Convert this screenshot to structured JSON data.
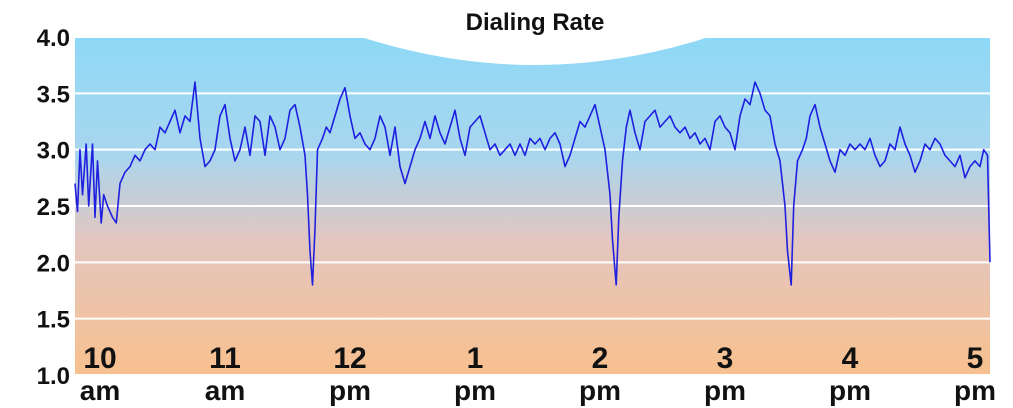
{
  "chart_data": {
    "type": "line",
    "title": "Dialing Rate",
    "x": [
      9.8,
      9.82,
      9.84,
      9.86,
      9.89,
      9.91,
      9.94,
      9.96,
      9.98,
      10.01,
      10.03,
      10.06,
      10.1,
      10.13,
      10.16,
      10.2,
      10.24,
      10.28,
      10.32,
      10.36,
      10.4,
      10.44,
      10.48,
      10.52,
      10.56,
      10.6,
      10.64,
      10.68,
      10.72,
      10.76,
      10.8,
      10.84,
      10.88,
      10.92,
      10.96,
      11.0,
      11.04,
      11.08,
      11.12,
      11.16,
      11.2,
      11.24,
      11.28,
      11.32,
      11.36,
      11.4,
      11.44,
      11.48,
      11.52,
      11.56,
      11.6,
      11.64,
      11.66,
      11.68,
      11.7,
      11.72,
      11.74,
      11.78,
      11.81,
      11.84,
      11.88,
      11.92,
      11.96,
      12.0,
      12.04,
      12.08,
      12.12,
      12.16,
      12.2,
      12.24,
      12.28,
      12.32,
      12.36,
      12.4,
      12.44,
      12.48,
      12.52,
      12.56,
      12.6,
      12.64,
      12.68,
      12.72,
      12.76,
      12.8,
      12.84,
      12.88,
      12.92,
      12.96,
      13.0,
      13.04,
      13.08,
      13.12,
      13.16,
      13.2,
      13.24,
      13.28,
      13.32,
      13.36,
      13.4,
      13.44,
      13.48,
      13.52,
      13.56,
      13.6,
      13.64,
      13.68,
      13.72,
      13.76,
      13.8,
      13.84,
      13.88,
      13.92,
      13.96,
      14.0,
      14.04,
      14.08,
      14.1,
      14.13,
      14.15,
      14.18,
      14.21,
      14.24,
      14.28,
      14.32,
      14.36,
      14.4,
      14.44,
      14.48,
      14.52,
      14.56,
      14.6,
      14.64,
      14.68,
      14.72,
      14.76,
      14.8,
      14.84,
      14.88,
      14.92,
      14.96,
      15.0,
      15.04,
      15.08,
      15.12,
      15.16,
      15.2,
      15.24,
      15.28,
      15.32,
      15.36,
      15.4,
      15.44,
      15.48,
      15.5,
      15.53,
      15.55,
      15.58,
      15.62,
      15.65,
      15.68,
      15.72,
      15.76,
      15.8,
      15.84,
      15.88,
      15.92,
      15.96,
      16.0,
      16.04,
      16.08,
      16.12,
      16.16,
      16.2,
      16.24,
      16.28,
      16.32,
      16.36,
      16.4,
      16.44,
      16.48,
      16.52,
      16.56,
      16.6,
      16.64,
      16.68,
      16.72,
      16.76,
      16.8,
      16.84,
      16.88,
      16.92,
      16.96,
      17.0,
      17.04,
      17.07,
      17.1,
      17.12
    ],
    "series": [
      {
        "color": "#1f1fe0",
        "values": [
          2.7,
          2.45,
          3.0,
          2.6,
          3.05,
          2.5,
          3.05,
          2.4,
          2.9,
          2.35,
          2.6,
          2.5,
          2.4,
          2.35,
          2.7,
          2.8,
          2.85,
          2.95,
          2.9,
          3.0,
          3.05,
          3.0,
          3.2,
          3.15,
          3.25,
          3.35,
          3.15,
          3.3,
          3.25,
          3.6,
          3.1,
          2.85,
          2.9,
          3.0,
          3.3,
          3.4,
          3.1,
          2.9,
          3.0,
          3.2,
          2.95,
          3.3,
          3.25,
          2.95,
          3.3,
          3.2,
          3.0,
          3.1,
          3.35,
          3.4,
          3.2,
          2.95,
          2.6,
          2.1,
          1.8,
          2.3,
          3.0,
          3.1,
          3.2,
          3.15,
          3.3,
          3.45,
          3.55,
          3.3,
          3.1,
          3.15,
          3.05,
          3.0,
          3.1,
          3.3,
          3.2,
          2.95,
          3.2,
          2.85,
          2.7,
          2.85,
          3.0,
          3.1,
          3.25,
          3.1,
          3.3,
          3.15,
          3.05,
          3.2,
          3.35,
          3.1,
          2.95,
          3.2,
          3.25,
          3.3,
          3.15,
          3.0,
          3.05,
          2.95,
          3.0,
          3.05,
          2.95,
          3.05,
          2.95,
          3.1,
          3.05,
          3.1,
          3.0,
          3.1,
          3.15,
          3.05,
          2.85,
          2.95,
          3.1,
          3.25,
          3.2,
          3.3,
          3.4,
          3.2,
          3.0,
          2.6,
          2.2,
          1.8,
          2.4,
          2.9,
          3.2,
          3.35,
          3.15,
          3.0,
          3.25,
          3.3,
          3.35,
          3.2,
          3.25,
          3.3,
          3.2,
          3.15,
          3.2,
          3.1,
          3.15,
          3.05,
          3.1,
          3.0,
          3.25,
          3.3,
          3.2,
          3.15,
          3.0,
          3.3,
          3.45,
          3.4,
          3.6,
          3.5,
          3.35,
          3.3,
          3.05,
          2.9,
          2.5,
          2.1,
          1.8,
          2.5,
          2.9,
          3.0,
          3.1,
          3.3,
          3.4,
          3.2,
          3.05,
          2.9,
          2.8,
          3.0,
          2.95,
          3.05,
          3.0,
          3.05,
          3.0,
          3.1,
          2.95,
          2.85,
          2.9,
          3.05,
          3.0,
          3.2,
          3.05,
          2.95,
          2.8,
          2.9,
          3.05,
          3.0,
          3.1,
          3.05,
          2.95,
          2.9,
          2.85,
          2.95,
          2.75,
          2.85,
          2.9,
          2.85,
          3.0,
          2.95,
          2.0
        ]
      }
    ],
    "xlim": [
      9.8,
      17.12
    ],
    "xticks": [
      {
        "value": 10,
        "label": "10 am"
      },
      {
        "value": 11,
        "label": "11 am"
      },
      {
        "value": 12,
        "label": "12 pm"
      },
      {
        "value": 13,
        "label": "1 pm"
      },
      {
        "value": 14,
        "label": "2 pm"
      },
      {
        "value": 15,
        "label": "3 pm"
      },
      {
        "value": 16,
        "label": "4 pm"
      },
      {
        "value": 17,
        "label": "5 pm"
      }
    ],
    "ylim": [
      1,
      4
    ],
    "yticks": [
      {
        "value": 1,
        "label": "1.0"
      },
      {
        "value": 1.5,
        "label": "1.5"
      },
      {
        "value": 2,
        "label": "2.0"
      },
      {
        "value": 2.5,
        "label": "2.5"
      },
      {
        "value": 3,
        "label": "3.0"
      },
      {
        "value": 3.5,
        "label": "3.5"
      },
      {
        "value": 4,
        "label": "4.0"
      }
    ],
    "grid": true
  }
}
